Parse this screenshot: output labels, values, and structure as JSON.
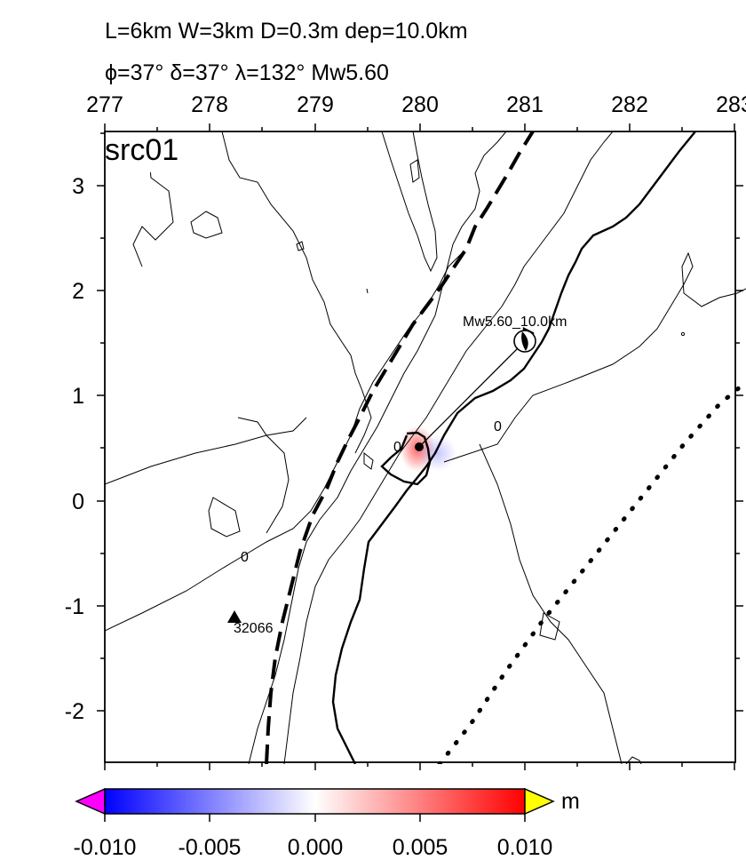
{
  "header": {
    "line1": "L=6km W=3km D=0.3m dep=10.0km",
    "line2": "ϕ=37° δ=37° λ=132° Mw5.60"
  },
  "panel_label": "src01",
  "x_ticks": [
    "277",
    "278",
    "279",
    "280",
    "281",
    "282",
    "283"
  ],
  "y_ticks": [
    "3",
    "2",
    "1",
    "0",
    "-1",
    "-2"
  ],
  "event_label": "Mw5.60_10.0km",
  "station_label": "32066",
  "contour_labels": [
    "0",
    "0",
    "0"
  ],
  "colorbar": {
    "unit": "m",
    "ticks": [
      "-0.010",
      "-0.005",
      "0.000",
      "0.005",
      "0.010"
    ],
    "colors": {
      "min": "#0000ff",
      "mid": "#ffffff",
      "max": "#ff0000",
      "under": "#ff00ff",
      "over": "#ffff00"
    }
  },
  "chart_data": {
    "type": "heatmap",
    "xlim": [
      277,
      283
    ],
    "ylim": [
      -2.5,
      3.5
    ],
    "x_ticks": [
      277,
      278,
      279,
      280,
      281,
      282,
      283
    ],
    "y_ticks": [
      3,
      2,
      1,
      0,
      -1,
      -2
    ],
    "color_range": [
      -0.01,
      0.01
    ],
    "station": {
      "name": "32066",
      "x": 278.25,
      "y": -1.12
    },
    "epicenter": {
      "x": 281.0,
      "y": 1.5
    },
    "fault_point": {
      "x": 280.0,
      "y": 0.5
    }
  }
}
